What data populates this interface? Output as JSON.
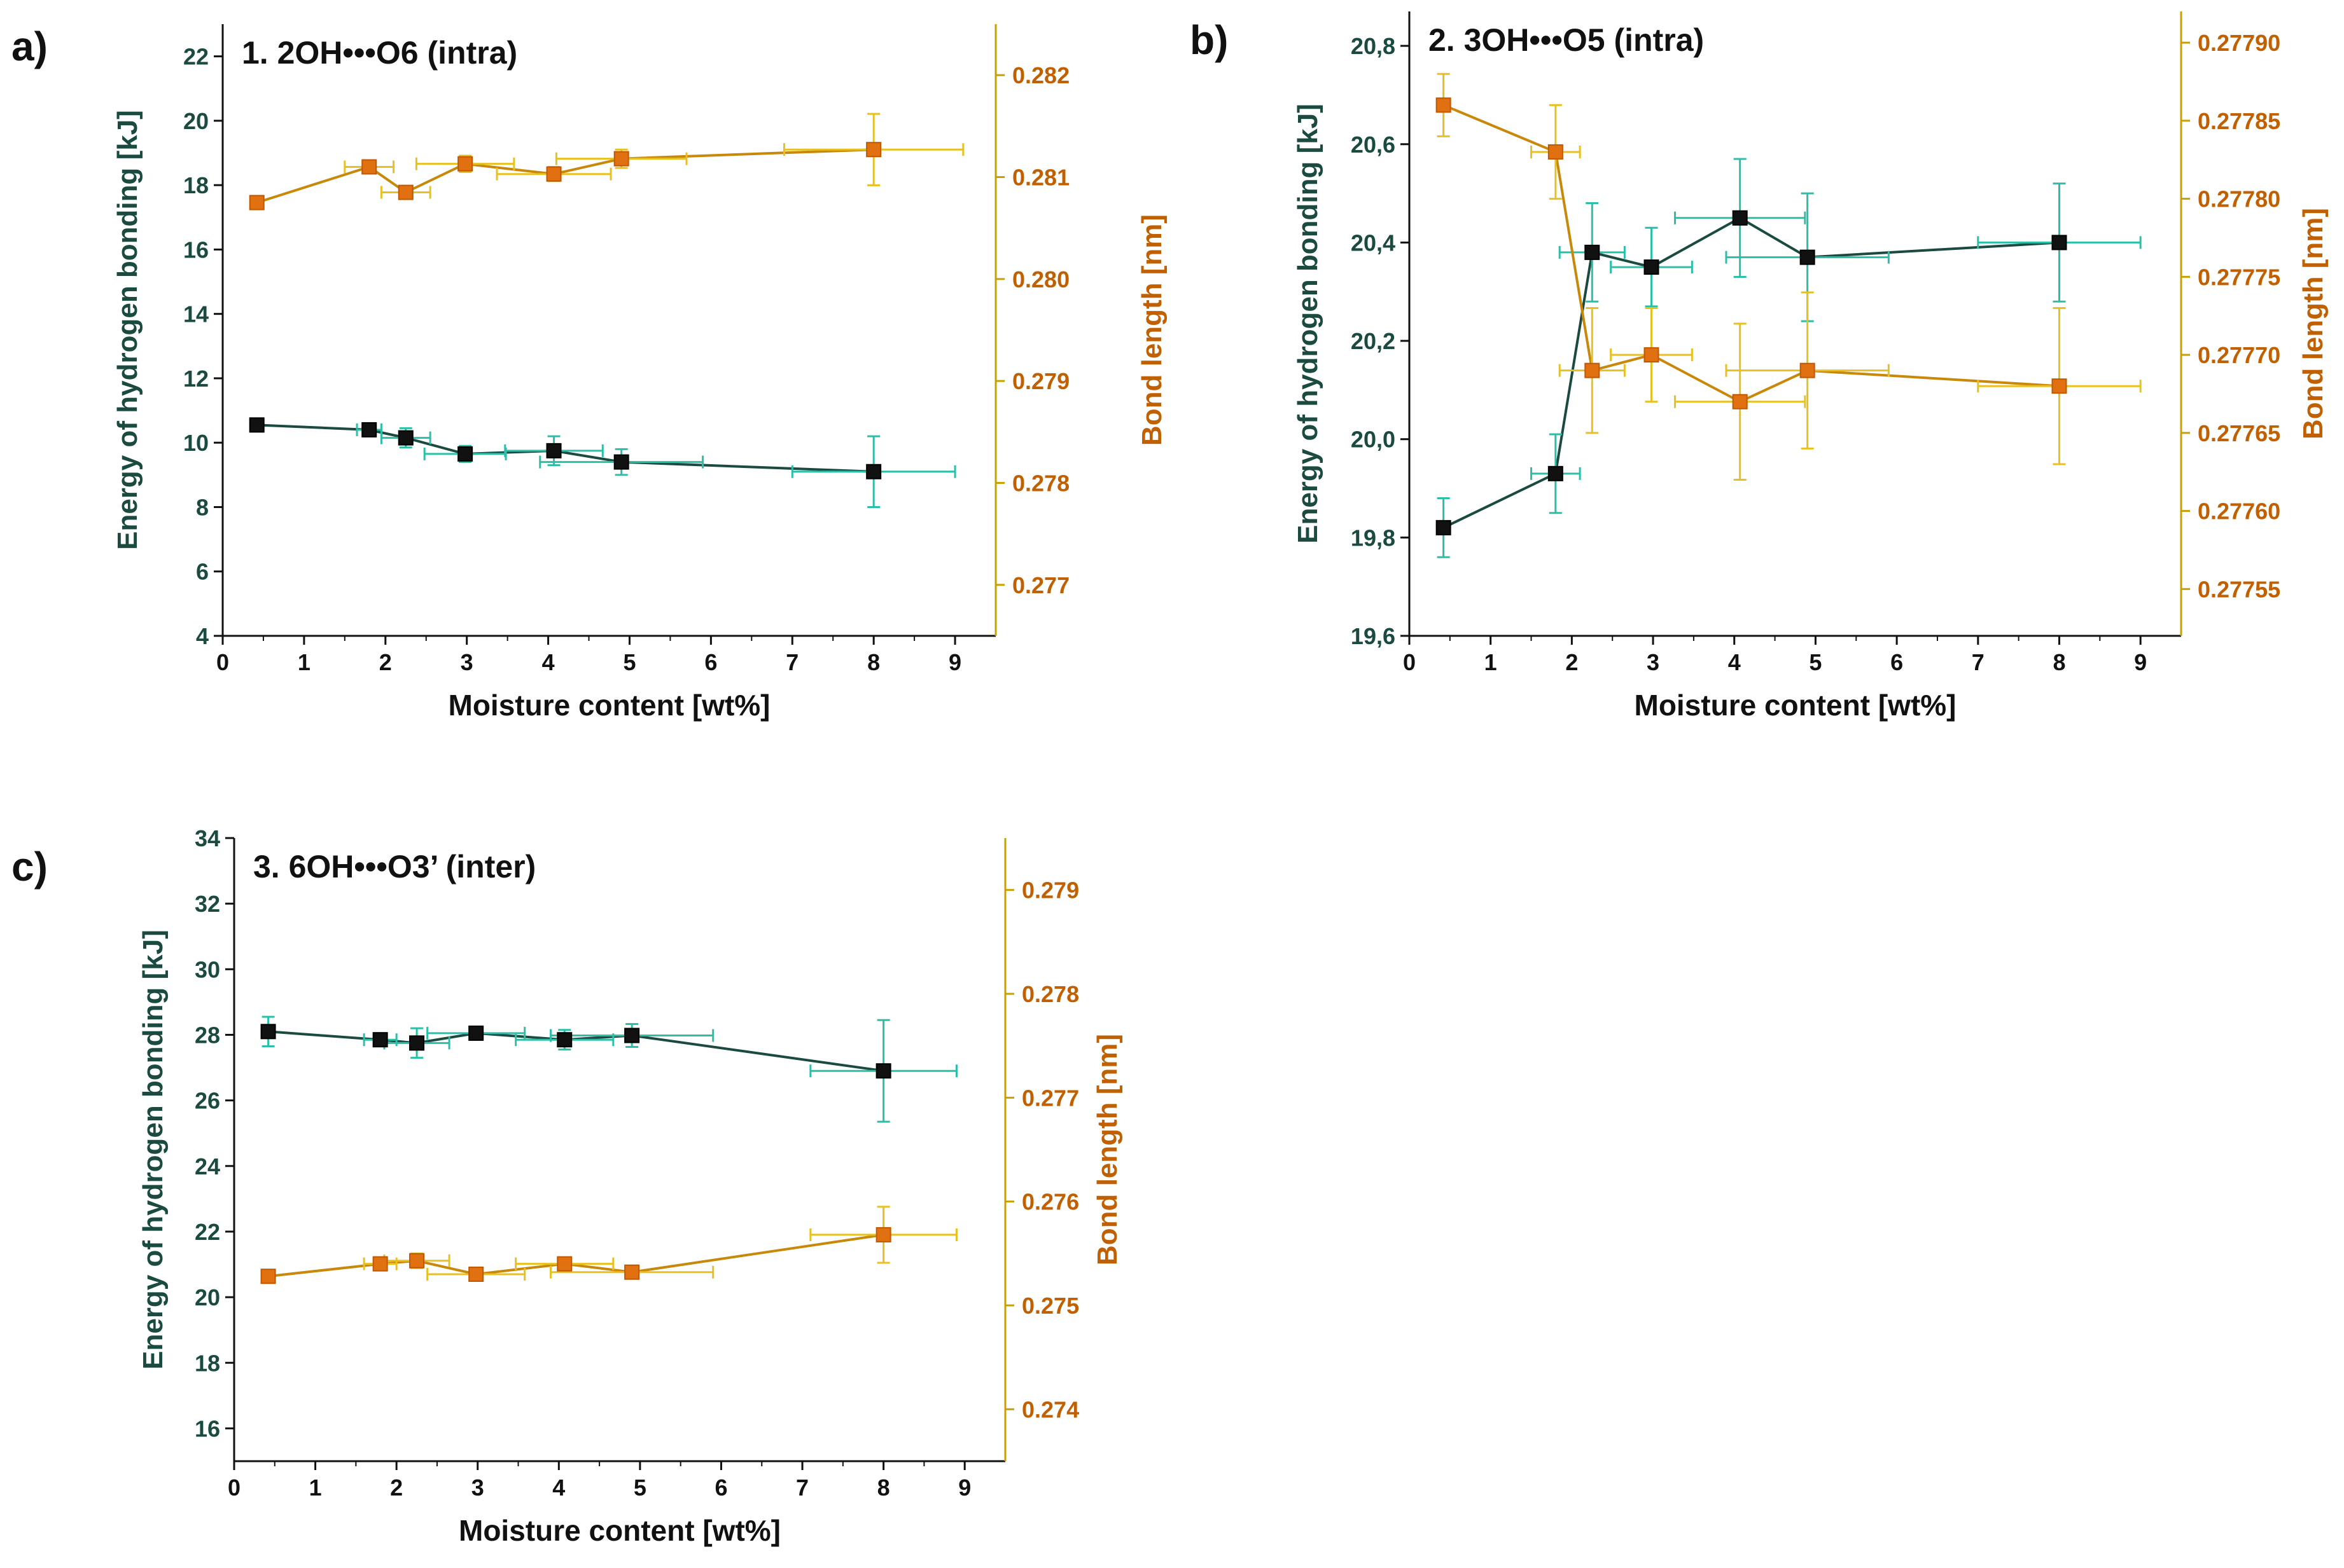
{
  "colors": {
    "energy_line": "#1a4a40",
    "energy_marker": "#111111",
    "energy_error": "#2bbfa8",
    "bond_line": "#c8890a",
    "bond_marker": "#e07010",
    "bond_error": "#e8c020",
    "left_axis_label": "#1a4a40",
    "right_axis_label": "#c06000",
    "right_axis": "#c8a000"
  },
  "chart_data": [
    {
      "panel": "a)",
      "type": "line",
      "title": "1. 2OH•••O6 (intra)",
      "xlabel": "Moisture content [wt%]",
      "ylabel": "Energy of hydrogen bonding [kJ]",
      "y2label": "Bond length [nm]",
      "xlim": [
        0,
        9.5
      ],
      "ylim": [
        4,
        23
      ],
      "y2lim": [
        0.2765,
        0.2825
      ],
      "xticks": [
        0,
        1,
        2,
        3,
        4,
        5,
        6,
        7,
        8,
        9
      ],
      "yticks": [
        4,
        6,
        8,
        10,
        12,
        14,
        16,
        18,
        20,
        22
      ],
      "y2ticks": [
        0.277,
        0.278,
        0.279,
        0.28,
        0.281,
        0.282
      ],
      "ytick_labels": [
        "4",
        "6",
        "8",
        "10",
        "12",
        "14",
        "16",
        "18",
        "20",
        "22"
      ],
      "y2tick_labels": [
        "0.277",
        "0.278",
        "0.279",
        "0.280",
        "0.281",
        "0.282"
      ],
      "series": [
        {
          "name": "Energy of hydrogen bonding",
          "axis": "left",
          "x": [
            0.42,
            1.8,
            2.25,
            2.98,
            4.07,
            4.9,
            8.0
          ],
          "y": [
            10.55,
            10.4,
            10.15,
            9.65,
            9.75,
            9.4,
            9.1
          ],
          "xerr": [
            0.08,
            0.15,
            0.3,
            0.5,
            0.6,
            1.0,
            1.0
          ],
          "yerr": [
            0.15,
            0.2,
            0.3,
            0.25,
            0.45,
            0.4,
            1.1
          ]
        },
        {
          "name": "Bond length",
          "axis": "right",
          "x": [
            0.42,
            1.8,
            2.25,
            2.98,
            4.07,
            4.9,
            8.0
          ],
          "y": [
            0.28075,
            0.2811,
            0.28085,
            0.28113,
            0.28103,
            0.28118,
            0.28127
          ],
          "xerr": [
            0.06,
            0.3,
            0.3,
            0.6,
            0.7,
            0.8,
            1.1
          ],
          "yerr": [
            3e-05,
            4e-05,
            5e-05,
            8e-05,
            7e-05,
            9e-05,
            0.00035
          ]
        }
      ]
    },
    {
      "panel": "b)",
      "type": "line",
      "title": "2. 3OH•••O5 (intra)",
      "xlabel": "Moisture content [wt%]",
      "ylabel": "Energy of hydrogen bonding [kJ]",
      "y2label": "Bond length [nm]",
      "xlim": [
        0,
        9.5
      ],
      "ylim": [
        19.6,
        20.87
      ],
      "y2lim": [
        0.27752,
        0.27792
      ],
      "xticks": [
        0,
        1,
        2,
        3,
        4,
        5,
        6,
        7,
        8,
        9
      ],
      "yticks": [
        19.6,
        19.8,
        20.0,
        20.2,
        20.4,
        20.6,
        20.8
      ],
      "y2ticks": [
        0.27755,
        0.2776,
        0.27765,
        0.2777,
        0.27775,
        0.2778,
        0.27785,
        0.2779
      ],
      "ytick_labels": [
        "19,6",
        "19,8",
        "20,0",
        "20,2",
        "20,4",
        "20,6",
        "20,8"
      ],
      "y2tick_labels": [
        "0.27755",
        "0.27760",
        "0.27765",
        "0.27770",
        "0.27775",
        "0.27780",
        "0.27785",
        "0.27790"
      ],
      "series": [
        {
          "name": "Energy of hydrogen bonding",
          "axis": "left",
          "x": [
            0.42,
            1.8,
            2.25,
            2.98,
            4.07,
            4.9,
            8.0
          ],
          "y": [
            19.82,
            19.93,
            20.38,
            20.35,
            20.45,
            20.37,
            20.4
          ],
          "xerr": [
            0.05,
            0.3,
            0.4,
            0.5,
            0.8,
            1.0,
            1.0
          ],
          "yerr": [
            0.06,
            0.08,
            0.1,
            0.08,
            0.12,
            0.13,
            0.12
          ]
        },
        {
          "name": "Bond length",
          "axis": "right",
          "x": [
            0.42,
            1.8,
            2.25,
            2.98,
            4.07,
            4.9,
            8.0
          ],
          "y": [
            0.27786,
            0.27783,
            0.27769,
            0.2777,
            0.27767,
            0.27769,
            0.27768
          ],
          "xerr": [
            0.05,
            0.3,
            0.4,
            0.5,
            0.8,
            1.0,
            1.0
          ],
          "yerr": [
            2e-05,
            3e-05,
            4e-05,
            3e-05,
            5e-05,
            5e-05,
            5e-05
          ]
        }
      ]
    },
    {
      "panel": "c)",
      "type": "line",
      "title": "3. 6OH•••O3’ (inter)",
      "xlabel": "Moisture content [wt%]",
      "ylabel": "Energy of hydrogen bonding [kJ]",
      "y2label": "Bond length [nm]",
      "xlim": [
        0,
        9.5
      ],
      "ylim": [
        15,
        34
      ],
      "y2lim": [
        0.2735,
        0.2795
      ],
      "xticks": [
        0,
        1,
        2,
        3,
        4,
        5,
        6,
        7,
        8,
        9
      ],
      "yticks": [
        16,
        18,
        20,
        22,
        24,
        26,
        28,
        30,
        32,
        34
      ],
      "y2ticks": [
        0.274,
        0.275,
        0.276,
        0.277,
        0.278,
        0.279
      ],
      "ytick_labels": [
        "16",
        "18",
        "20",
        "22",
        "24",
        "26",
        "28",
        "30",
        "32",
        "34"
      ],
      "y2tick_labels": [
        "0.274",
        "0.275",
        "0.276",
        "0.277",
        "0.278",
        "0.279"
      ],
      "series": [
        {
          "name": "Energy of hydrogen bonding",
          "axis": "left",
          "x": [
            0.42,
            1.8,
            2.25,
            2.98,
            4.07,
            4.9,
            8.0
          ],
          "y": [
            28.1,
            27.85,
            27.75,
            28.05,
            27.85,
            27.98,
            26.9
          ],
          "xerr": [
            0.05,
            0.2,
            0.4,
            0.6,
            0.6,
            1.0,
            0.9
          ],
          "yerr": [
            0.45,
            0.2,
            0.45,
            0.2,
            0.3,
            0.35,
            1.55
          ]
        },
        {
          "name": "Bond length",
          "axis": "right",
          "x": [
            0.42,
            1.8,
            2.25,
            2.98,
            4.07,
            4.9,
            8.0
          ],
          "y": [
            0.27528,
            0.2754,
            0.27543,
            0.2753,
            0.2754,
            0.27532,
            0.27568
          ],
          "xerr": [
            0.05,
            0.2,
            0.4,
            0.6,
            0.6,
            1.0,
            0.9
          ],
          "yerr": [
            6e-05,
            5e-05,
            7e-05,
            4e-05,
            5e-05,
            6e-05,
            0.00027
          ]
        }
      ]
    }
  ]
}
